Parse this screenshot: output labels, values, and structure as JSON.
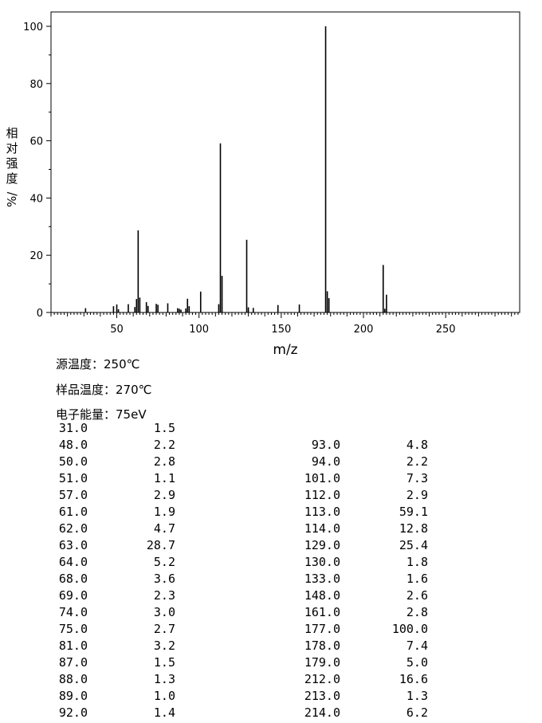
{
  "chart_data": {
    "type": "bar",
    "ylabel": "相对强度",
    "ylabel_unit": "%/",
    "xlabel": "m/z",
    "xlim": [
      10,
      295
    ],
    "ylim": [
      0,
      100
    ],
    "x_ticks": [
      50,
      100,
      150,
      200,
      250
    ],
    "y_ticks": [
      0,
      20,
      40,
      60,
      80,
      100
    ],
    "peaks": [
      {
        "mz": 31,
        "rel": 1.5
      },
      {
        "mz": 48,
        "rel": 2.2
      },
      {
        "mz": 50,
        "rel": 2.8
      },
      {
        "mz": 51,
        "rel": 1.1
      },
      {
        "mz": 57,
        "rel": 2.9
      },
      {
        "mz": 61,
        "rel": 1.9
      },
      {
        "mz": 62,
        "rel": 4.7
      },
      {
        "mz": 63,
        "rel": 28.7
      },
      {
        "mz": 64,
        "rel": 5.2
      },
      {
        "mz": 68,
        "rel": 3.6
      },
      {
        "mz": 69,
        "rel": 2.3
      },
      {
        "mz": 74,
        "rel": 3.0
      },
      {
        "mz": 75,
        "rel": 2.7
      },
      {
        "mz": 81,
        "rel": 3.2
      },
      {
        "mz": 87,
        "rel": 1.5
      },
      {
        "mz": 88,
        "rel": 1.3
      },
      {
        "mz": 89,
        "rel": 1.0
      },
      {
        "mz": 92,
        "rel": 1.4
      },
      {
        "mz": 93,
        "rel": 4.8
      },
      {
        "mz": 94,
        "rel": 2.2
      },
      {
        "mz": 101,
        "rel": 7.3
      },
      {
        "mz": 112,
        "rel": 2.9
      },
      {
        "mz": 113,
        "rel": 59.1
      },
      {
        "mz": 114,
        "rel": 12.8
      },
      {
        "mz": 129,
        "rel": 25.4
      },
      {
        "mz": 130,
        "rel": 1.8
      },
      {
        "mz": 133,
        "rel": 1.6
      },
      {
        "mz": 148,
        "rel": 2.6
      },
      {
        "mz": 161,
        "rel": 2.8
      },
      {
        "mz": 177,
        "rel": 100.0
      },
      {
        "mz": 178,
        "rel": 7.4
      },
      {
        "mz": 179,
        "rel": 5.0
      },
      {
        "mz": 212,
        "rel": 16.6
      },
      {
        "mz": 213,
        "rel": 1.3
      },
      {
        "mz": 214,
        "rel": 6.2
      }
    ]
  },
  "info": {
    "source_temp": "源温度：250℃",
    "sample_temp": "样品温度：270℃",
    "electron_energy": "电子能量：75eV"
  },
  "table": {
    "left": [
      [
        "31.0",
        "1.5"
      ],
      [
        "48.0",
        "2.2"
      ],
      [
        "50.0",
        "2.8"
      ],
      [
        "51.0",
        "1.1"
      ],
      [
        "57.0",
        "2.9"
      ],
      [
        "61.0",
        "1.9"
      ],
      [
        "62.0",
        "4.7"
      ],
      [
        "63.0",
        "28.7"
      ],
      [
        "64.0",
        "5.2"
      ],
      [
        "68.0",
        "3.6"
      ],
      [
        "69.0",
        "2.3"
      ],
      [
        "74.0",
        "3.0"
      ],
      [
        "75.0",
        "2.7"
      ],
      [
        "81.0",
        "3.2"
      ],
      [
        "87.0",
        "1.5"
      ],
      [
        "88.0",
        "1.3"
      ],
      [
        "89.0",
        "1.0"
      ],
      [
        "92.0",
        "1.4"
      ]
    ],
    "right": [
      [
        "93.0",
        "4.8"
      ],
      [
        "94.0",
        "2.2"
      ],
      [
        "101.0",
        "7.3"
      ],
      [
        "112.0",
        "2.9"
      ],
      [
        "113.0",
        "59.1"
      ],
      [
        "114.0",
        "12.8"
      ],
      [
        "129.0",
        "25.4"
      ],
      [
        "130.0",
        "1.8"
      ],
      [
        "133.0",
        "1.6"
      ],
      [
        "148.0",
        "2.6"
      ],
      [
        "161.0",
        "2.8"
      ],
      [
        "177.0",
        "100.0"
      ],
      [
        "178.0",
        "7.4"
      ],
      [
        "179.0",
        "5.0"
      ],
      [
        "212.0",
        "16.6"
      ],
      [
        "213.0",
        "1.3"
      ],
      [
        "214.0",
        "6.2"
      ]
    ]
  }
}
